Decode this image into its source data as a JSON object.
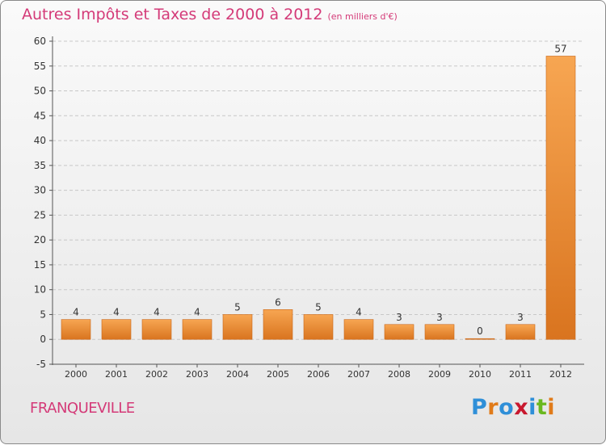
{
  "chart_data": {
    "type": "bar",
    "title": "Autres Impôts et Taxes de 2000 à 2012",
    "subtitle": "(en milliers d'€)",
    "categories": [
      "2000",
      "2001",
      "2002",
      "2003",
      "2004",
      "2005",
      "2006",
      "2007",
      "2008",
      "2009",
      "2010",
      "2011",
      "2012"
    ],
    "values": [
      4,
      4,
      4,
      4,
      5,
      6,
      5,
      4,
      3,
      3,
      0,
      3,
      57
    ],
    "ylim": [
      -5,
      60
    ],
    "yticks": [
      -5,
      0,
      5,
      10,
      15,
      20,
      25,
      30,
      35,
      40,
      45,
      50,
      55,
      60
    ],
    "grid": true,
    "bar_color": "#f0913a"
  },
  "footer": {
    "location": "FRANQUEVILLE",
    "brand_letters": [
      {
        "ch": "P",
        "color": "#2f8fd8"
      },
      {
        "ch": "r",
        "color": "#e07b1a"
      },
      {
        "ch": "o",
        "color": "#2f8fd8"
      },
      {
        "ch": "x",
        "color": "#c8182e"
      },
      {
        "ch": "i",
        "color": "#2f8fd8"
      },
      {
        "ch": "t",
        "color": "#6ab81f"
      },
      {
        "ch": "i",
        "color": "#e07b1a"
      }
    ]
  }
}
